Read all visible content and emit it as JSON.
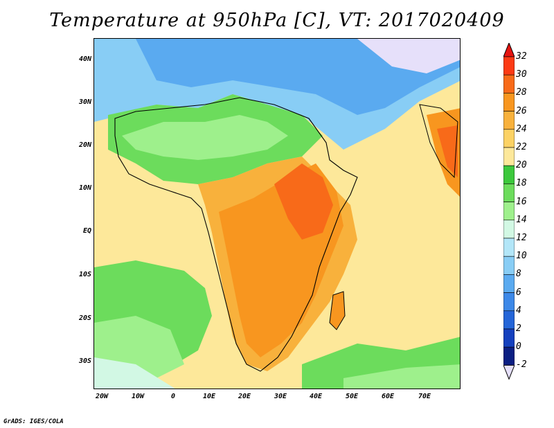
{
  "title": "Temperature at 950hPa [C], VT: 2017020409",
  "footer": "GrADS: IGES/COLA",
  "lat_labels": [
    "40N",
    "30N",
    "20N",
    "10N",
    "EQ",
    "10S",
    "20S",
    "30S"
  ],
  "lon_labels": [
    "20W",
    "10W",
    "0",
    "10E",
    "20E",
    "30E",
    "40E",
    "50E",
    "60E",
    "70E"
  ],
  "colorbar": {
    "labels": [
      "32",
      "30",
      "28",
      "26",
      "24",
      "22",
      "20",
      "18",
      "16",
      "14",
      "12",
      "10",
      "8",
      "6",
      "4",
      "2",
      "0",
      "-2"
    ],
    "colors": [
      "#fc3a14",
      "#f86a19",
      "#f8961f",
      "#f8b13c",
      "#fcd264",
      "#fde89a",
      "#3cc83c",
      "#6cdc5c",
      "#9ef08c",
      "#d2f8e4",
      "#b2e6f8",
      "#88cdf5",
      "#5aaaf0",
      "#3c88e8",
      "#2465d8",
      "#1440be",
      "#0a1e82"
    ],
    "min_color": "#e6e0fa",
    "max_color": "#e61410"
  },
  "map_colors": {
    "hot": "#f86a19",
    "warm": "#f8961f",
    "mild": "#fde89a",
    "green": "#3cc83c",
    "lightgreen": "#9ef08c",
    "cool": "#88cdf5",
    "cold": "#3c88e8",
    "lavender": "#e6e0fa"
  }
}
